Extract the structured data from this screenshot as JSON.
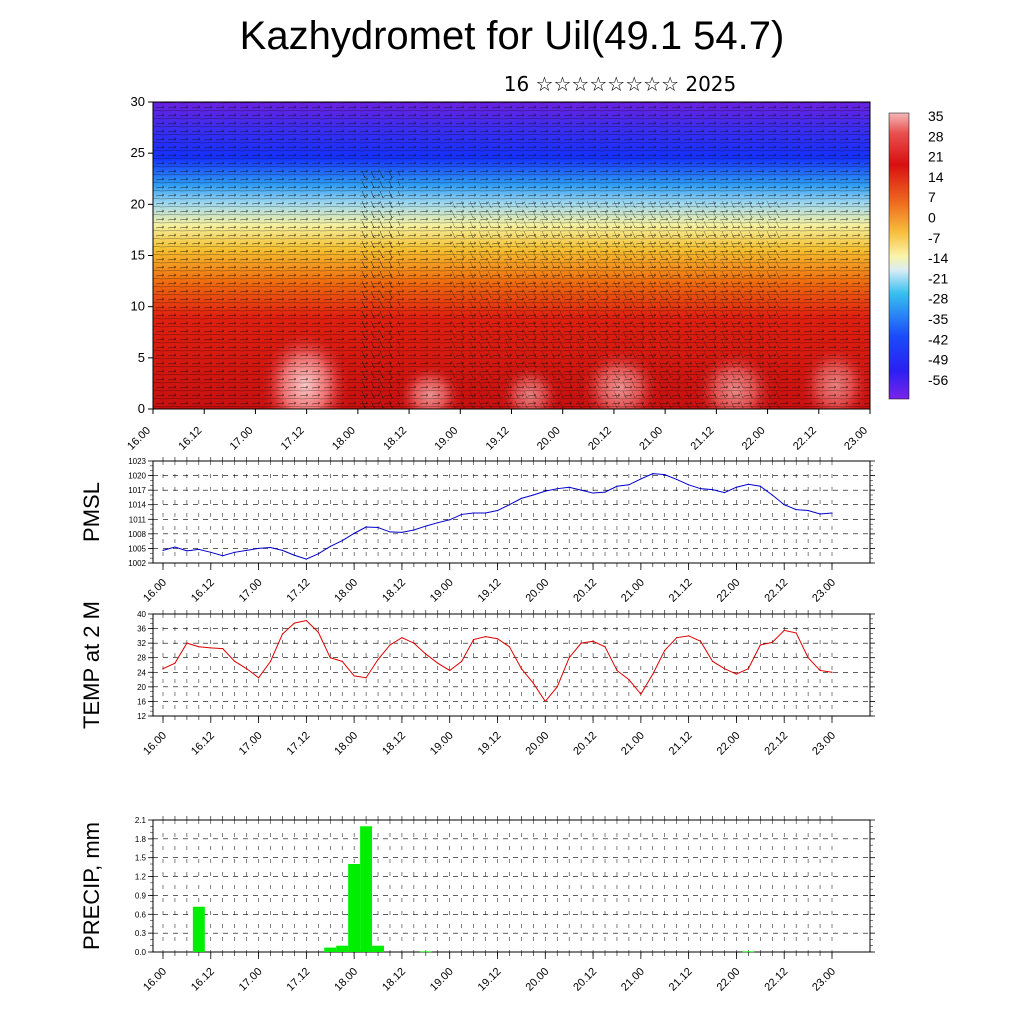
{
  "header": {
    "title": "Kazhydromet for Uil(49.1 54.7)",
    "subtitle": "16 ☆☆☆☆☆☆☆☆ 2025"
  },
  "time_labels": [
    "16.00",
    "16.12",
    "17.00",
    "17.12",
    "18.00",
    "18.12",
    "19.00",
    "19.12",
    "20.00",
    "20.12",
    "21.00",
    "21.12",
    "22.00",
    "22.12",
    "23.00"
  ],
  "colorbar": {
    "labels": [
      "35",
      "28",
      "21",
      "14",
      "7",
      "0",
      "-7",
      "-14",
      "-21",
      "-28",
      "-35",
      "-42",
      "-49",
      "-56"
    ]
  },
  "chart_data": [
    {
      "type": "heatmap",
      "title": "",
      "ylabel": "",
      "ylim": [
        0,
        30
      ],
      "yticks": [
        0,
        5,
        10,
        15,
        20,
        25,
        30
      ],
      "colorbar_range": [
        -60,
        38
      ],
      "description_values_by_height": {
        "heights": [
          0,
          5,
          10,
          15,
          18,
          20,
          25,
          30
        ],
        "temperature": [
          32,
          25,
          18,
          -7,
          -18,
          -30,
          -52,
          -50
        ]
      }
    },
    {
      "type": "line",
      "ylabel": "PMSL",
      "ylim": [
        1002,
        1023
      ],
      "yticks": [
        "1002",
        "1005",
        "1008",
        "1011",
        "1014",
        "1017",
        "1020",
        "1023"
      ],
      "x": [
        0,
        3,
        6,
        9,
        12,
        15,
        18,
        21,
        24,
        27,
        30,
        33,
        36,
        39,
        42,
        45,
        48,
        51,
        54,
        57,
        60,
        63,
        66,
        69,
        72,
        75,
        78,
        81,
        84,
        87,
        90,
        93,
        96,
        99,
        102,
        105,
        108,
        111,
        114,
        117,
        120,
        123,
        126,
        129,
        132,
        135,
        138,
        141,
        144,
        147,
        150,
        153,
        156,
        159,
        162,
        165,
        168
      ],
      "series": [
        {
          "color": "#0000cc",
          "values": [
            1004.6,
            1005.3,
            1004.5,
            1004.8,
            1004.2,
            1003.5,
            1004.2,
            1004.6,
            1005.0,
            1005.2,
            1004.6,
            1003.6,
            1002.8,
            1003.9,
            1005.4,
            1006.6,
            1008.1,
            1009.4,
            1009.3,
            1008.4,
            1008.3,
            1008.8,
            1009.6,
            1010.3,
            1010.9,
            1012.0,
            1012.3,
            1012.3,
            1012.8,
            1014.0,
            1015.3,
            1016.0,
            1016.8,
            1017.3,
            1017.6,
            1017.0,
            1016.4,
            1016.6,
            1017.8,
            1018.1,
            1019.3,
            1020.4,
            1020.2,
            1019.2,
            1018.1,
            1017.3,
            1017.1,
            1016.5,
            1017.6,
            1018.2,
            1017.8,
            1016.0,
            1014.0,
            1013.0,
            1012.8,
            1012.1,
            1012.3
          ]
        }
      ]
    },
    {
      "type": "line",
      "ylabel": "TEMP at 2 M",
      "ylim": [
        12,
        40
      ],
      "yticks": [
        "12",
        "16",
        "20",
        "24",
        "28",
        "32",
        "36",
        "40"
      ],
      "x": [
        0,
        3,
        6,
        9,
        12,
        15,
        18,
        21,
        24,
        27,
        30,
        33,
        36,
        39,
        42,
        45,
        48,
        51,
        54,
        57,
        60,
        63,
        66,
        69,
        72,
        75,
        78,
        81,
        84,
        87,
        90,
        93,
        96,
        99,
        102,
        105,
        108,
        111,
        114,
        117,
        120,
        123,
        126,
        129,
        132,
        135,
        138,
        141,
        144,
        147,
        150,
        153,
        156,
        159,
        162,
        165,
        168
      ],
      "series": [
        {
          "color": "#dd0000",
          "values": [
            25,
            26.5,
            32,
            31,
            30.7,
            30.5,
            27,
            25,
            22.5,
            27,
            34.5,
            37.5,
            38.2,
            35,
            28,
            27,
            23,
            22.5,
            27.5,
            31.5,
            33.5,
            32,
            29,
            26.5,
            24.5,
            27,
            33,
            33.8,
            33.2,
            31,
            25,
            21,
            16,
            20,
            28,
            32,
            32.5,
            31,
            24.5,
            22,
            18,
            23.5,
            30,
            33.5,
            34,
            32.5,
            27,
            25,
            23.5,
            25,
            31.5,
            32.2,
            35.5,
            34.8,
            28,
            24.5,
            24
          ]
        }
      ]
    },
    {
      "type": "bar",
      "ylabel": "PRECIP, mm",
      "ylim": [
        0,
        2.1
      ],
      "yticks": [
        "0.0",
        "0.3",
        "0.6",
        "0.9",
        "1.2",
        "1.5",
        "1.8",
        "2.1"
      ],
      "x": [
        9,
        42,
        45,
        48,
        51,
        54,
        66,
        147
      ],
      "values": [
        0.72,
        0.07,
        0.1,
        1.4,
        2.0,
        0.1,
        0.01,
        0.01
      ],
      "color": "#00ee00"
    }
  ]
}
